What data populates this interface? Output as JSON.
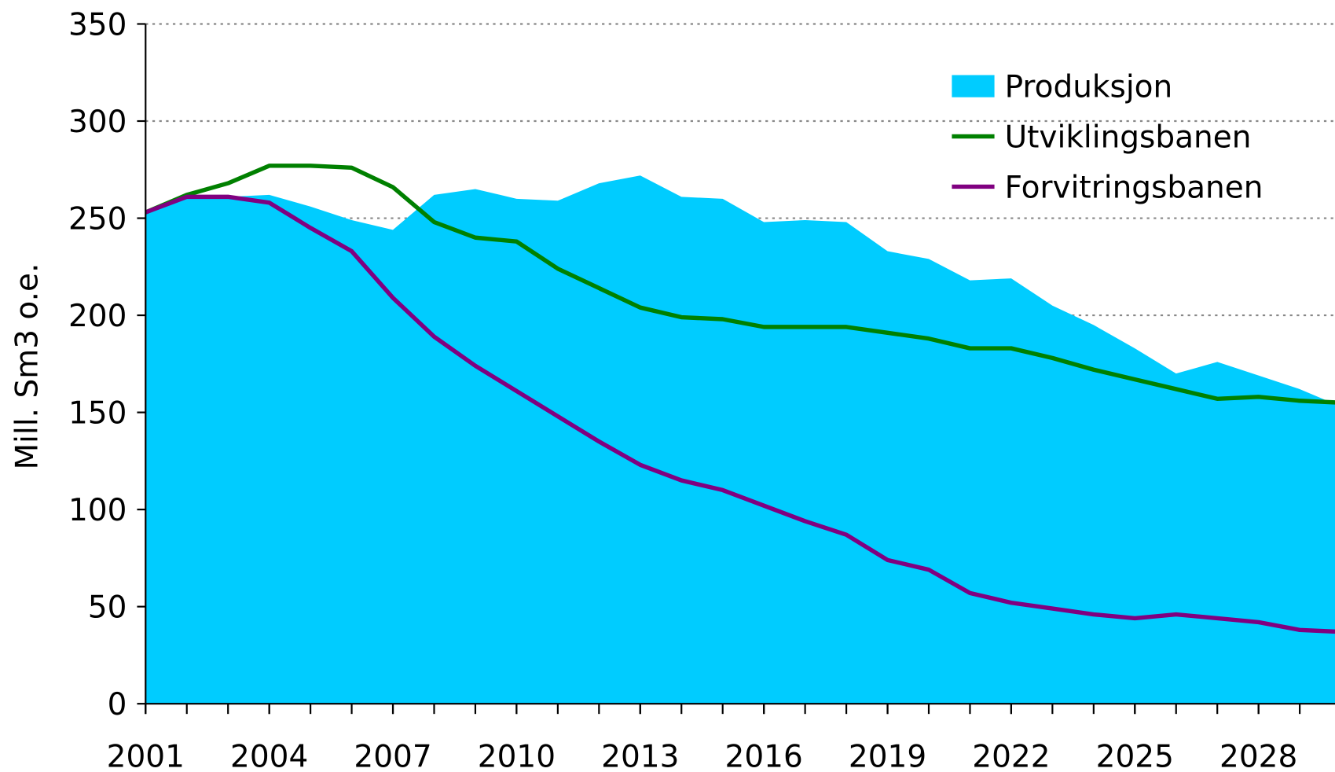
{
  "chart_data": {
    "type": "area-line",
    "y_label": "Mill. Sm3 o.e.",
    "x": [
      2001,
      2002,
      2003,
      2004,
      2005,
      2006,
      2007,
      2008,
      2009,
      2010,
      2011,
      2012,
      2013,
      2014,
      2015,
      2016,
      2017,
      2018,
      2019,
      2020,
      2021,
      2022,
      2023,
      2024,
      2025,
      2026,
      2027,
      2028,
      2029,
      2030
    ],
    "series": [
      {
        "name": "Produksjon",
        "kind": "area",
        "color": "#00ccff",
        "values": [
          252,
          261,
          261,
          262,
          256,
          249,
          244,
          262,
          265,
          260,
          259,
          268,
          272,
          261,
          260,
          248,
          249,
          248,
          233,
          229,
          218,
          219,
          205,
          195,
          183,
          170,
          176,
          169,
          162,
          153
        ]
      },
      {
        "name": "Utviklingsbanen",
        "kind": "line",
        "color": "#008000",
        "values": [
          253,
          262,
          268,
          277,
          277,
          276,
          266,
          248,
          240,
          238,
          224,
          214,
          204,
          199,
          198,
          194,
          194,
          194,
          191,
          188,
          183,
          183,
          178,
          172,
          167,
          162,
          157,
          158,
          156,
          155
        ]
      },
      {
        "name": "Forvitringsbanen",
        "kind": "line",
        "color": "#800080",
        "values": [
          253,
          261,
          261,
          258,
          245,
          233,
          209,
          189,
          174,
          161,
          148,
          135,
          123,
          115,
          110,
          102,
          94,
          87,
          74,
          69,
          57,
          52,
          49,
          46,
          44,
          46,
          44,
          42,
          38,
          37
        ]
      }
    ],
    "xlim": [
      2001,
      2030
    ],
    "xticks": [
      2001,
      2004,
      2007,
      2010,
      2013,
      2016,
      2019,
      2022,
      2025,
      2028
    ],
    "ylim": [
      0,
      350
    ],
    "yticks": [
      0,
      50,
      100,
      150,
      200,
      250,
      300,
      350
    ],
    "grid": true,
    "legend": "top-right"
  }
}
